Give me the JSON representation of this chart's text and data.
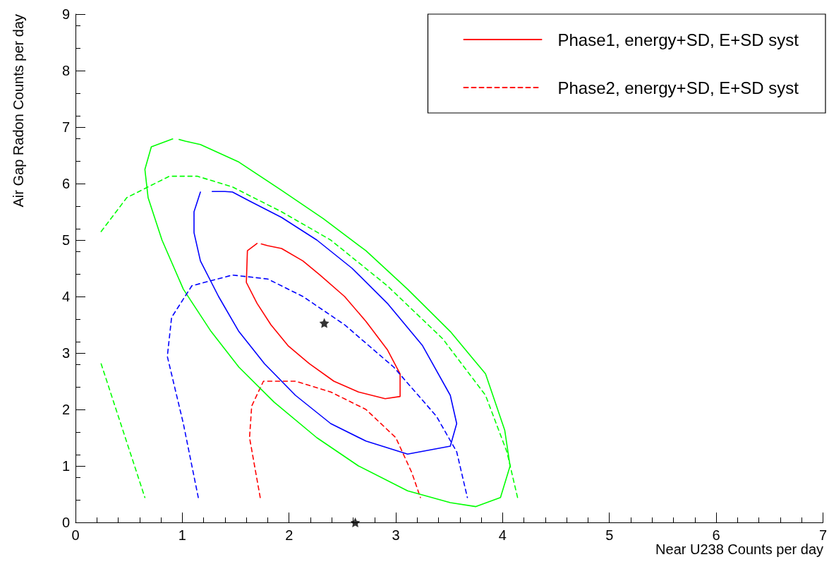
{
  "chart_data": {
    "type": "line",
    "xlabel": "Near U238 Counts per day",
    "ylabel": "Air Gap Radon Counts per day",
    "xlim": [
      0,
      7
    ],
    "ylim": [
      0,
      9
    ],
    "xticks": [
      0,
      1,
      2,
      3,
      4,
      5,
      6,
      7
    ],
    "yticks": [
      0,
      1,
      2,
      3,
      4,
      5,
      6,
      7,
      8,
      9
    ],
    "grid": false,
    "legend": "top right",
    "marker": "none",
    "series": [
      {
        "name": "Phase1, energy+SD, E+SD syst",
        "color": "#ff0000",
        "line_style": "solid",
        "x": [
          1.7,
          1.61,
          1.6,
          1.7,
          1.83,
          1.99,
          2.19,
          2.42,
          2.65,
          2.9,
          3.04,
          3.04,
          2.92,
          2.72,
          2.52,
          2.29,
          2.13,
          1.93,
          1.8,
          1.74
        ],
        "values": [
          4.94,
          4.81,
          4.25,
          3.88,
          3.5,
          3.13,
          2.81,
          2.5,
          2.31,
          2.19,
          2.23,
          2.63,
          3.06,
          3.56,
          4.0,
          4.38,
          4.63,
          4.85,
          4.9,
          4.93
        ]
      },
      {
        "name": "Phase2, energy+SD, E+SD syst",
        "color": "#ff0000",
        "line_style": "dashed",
        "x": [
          1.73,
          1.63,
          1.65,
          1.76,
          2.06,
          2.39,
          2.72,
          3.0,
          3.15,
          3.23
        ],
        "values": [
          0.44,
          1.5,
          2.06,
          2.5,
          2.5,
          2.31,
          2.0,
          1.5,
          0.88,
          0.44
        ]
      },
      {
        "color": "#0000ff",
        "line_style": "solid",
        "x": [
          1.17,
          1.11,
          1.11,
          1.17,
          1.34,
          1.53,
          1.77,
          2.06,
          2.39,
          2.72,
          3.11,
          3.51,
          3.57,
          3.51,
          3.25,
          2.92,
          2.59,
          2.26,
          1.93,
          1.63,
          1.47,
          1.4,
          1.28
        ],
        "values": [
          5.85,
          5.5,
          5.13,
          4.63,
          4.0,
          3.38,
          2.81,
          2.25,
          1.75,
          1.44,
          1.21,
          1.35,
          1.75,
          2.25,
          3.13,
          3.88,
          4.5,
          5.0,
          5.4,
          5.69,
          5.85,
          5.86,
          5.86
        ]
      },
      {
        "color": "#00ff00",
        "line_style": "solid",
        "x": [
          0.91,
          0.71,
          0.65,
          0.68,
          0.81,
          1.01,
          1.27,
          1.53,
          1.86,
          2.26,
          2.65,
          3.11,
          3.51,
          3.75,
          3.98,
          4.07,
          4.02,
          3.84,
          3.51,
          3.11,
          2.72,
          2.32,
          1.93,
          1.53,
          1.17,
          1.03,
          0.97
        ],
        "values": [
          6.79,
          6.65,
          6.25,
          5.75,
          5.0,
          4.13,
          3.38,
          2.75,
          2.13,
          1.5,
          1.0,
          0.56,
          0.35,
          0.28,
          0.44,
          1.0,
          1.63,
          2.63,
          3.38,
          4.13,
          4.81,
          5.38,
          5.88,
          6.38,
          6.69,
          6.75,
          6.78
        ]
      },
      {
        "color": "#0000ff",
        "line_style": "dashed",
        "x": [
          1.15,
          1.01,
          0.86,
          0.9,
          1.09,
          1.47,
          1.8,
          2.13,
          2.52,
          2.98,
          3.38,
          3.57,
          3.67
        ],
        "values": [
          0.44,
          1.75,
          2.94,
          3.63,
          4.19,
          4.38,
          4.31,
          4.0,
          3.5,
          2.75,
          1.88,
          1.25,
          0.44
        ]
      },
      {
        "color": "#00ff00",
        "line_style": "dashed",
        "x": [
          0.24,
          0.38,
          0.65
        ],
        "values": [
          2.81,
          2.0,
          0.44
        ]
      },
      {
        "color": "#00ff00",
        "line_style": "dashed",
        "x": [
          0.24,
          0.48,
          0.88,
          1.14,
          1.47,
          1.93,
          2.39,
          2.92,
          3.44,
          3.84,
          4.04,
          4.14
        ],
        "values": [
          5.15,
          5.75,
          6.13,
          6.13,
          5.94,
          5.5,
          5.0,
          4.19,
          3.25,
          2.25,
          1.25,
          0.44
        ]
      },
      {
        "type": "scatter",
        "marker": "star",
        "color": "#000000",
        "x": [
          2.33,
          2.62
        ],
        "values": [
          3.53,
          0
        ]
      }
    ]
  }
}
